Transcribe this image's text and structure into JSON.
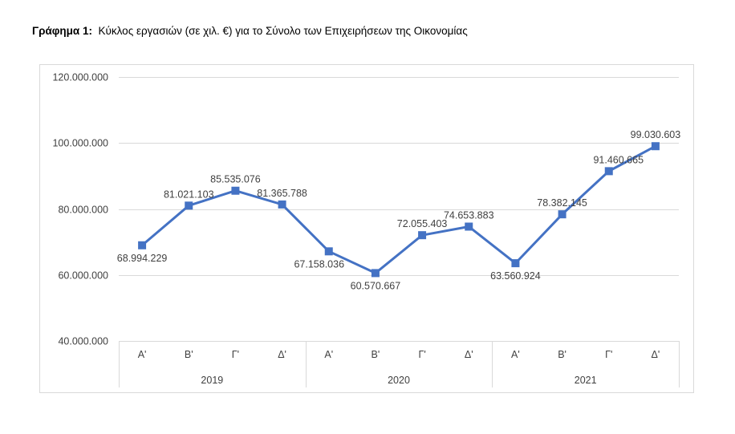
{
  "title_prefix": "Γράφημα 1:",
  "title_text": "Κύκλος εργασιών (σε χιλ. €) για το Σύνολο των Επιχειρήσεων της Οικονομίας",
  "chart_data": {
    "type": "line",
    "title": "Κύκλος εργασιών (σε χιλ. €) για το Σύνολο των Επιχειρήσεων της Οικονομίας",
    "categories": [
      "Α'",
      "Β'",
      "Γ'",
      "Δ'",
      "Α'",
      "Β'",
      "Γ'",
      "Δ'",
      "Α'",
      "Β'",
      "Γ'",
      "Δ'"
    ],
    "groups": [
      "2019",
      "2020",
      "2021"
    ],
    "values": [
      68994229,
      81021103,
      85535076,
      81365788,
      67158036,
      60570667,
      72055403,
      74653883,
      63560924,
      78382145,
      91460665,
      99030603
    ],
    "data_labels": [
      "68.994.229",
      "81.021.103",
      "85.535.076",
      "81.365.788",
      "67.158.036",
      "60.570.667",
      "72.055.403",
      "74.653.883",
      "63.560.924",
      "78.382.145",
      "91.460.665",
      "99.030.603"
    ],
    "ylim": [
      40000000,
      120000000
    ],
    "yticks": [
      "40.000.000",
      "60.000.000",
      "80.000.000",
      "100.000.000",
      "120.000.000"
    ],
    "grid": true,
    "legend": "none",
    "line_color": "#4472C4",
    "marker": "square"
  }
}
